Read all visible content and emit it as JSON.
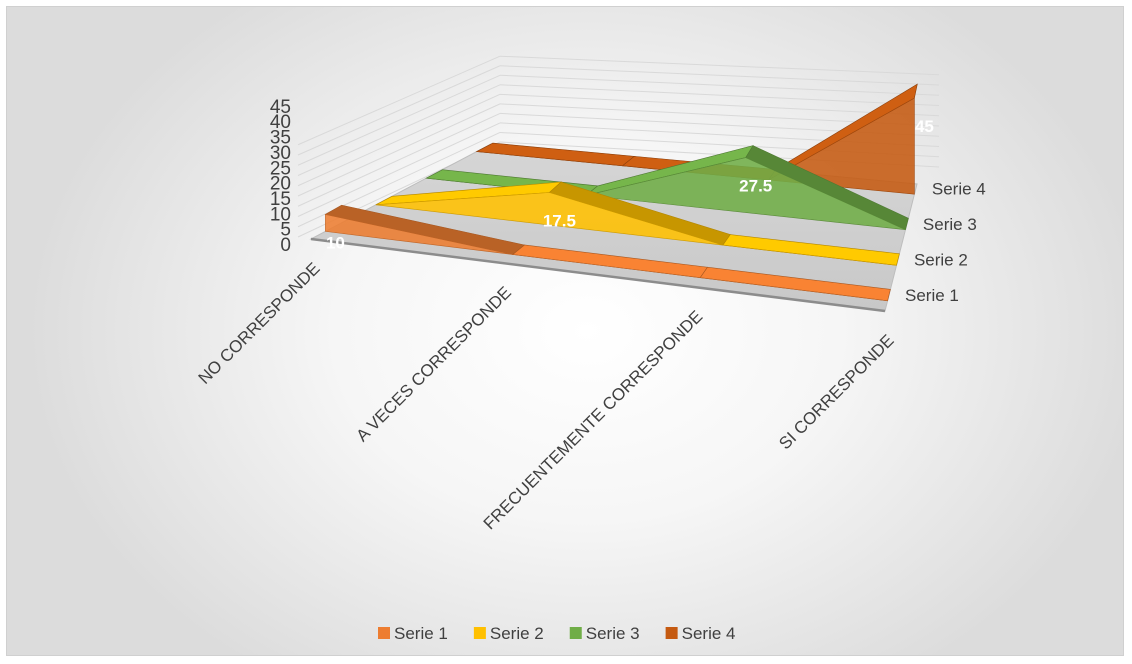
{
  "chart_data": {
    "type": "area",
    "variant": "3d-area",
    "categories": [
      "NO CORRESPONDE",
      "A VECES CORRESPONDE",
      "FRECUENTEMENTE CORRESPONDE",
      "SI CORRESPONDE"
    ],
    "series": [
      {
        "name": "Serie 1",
        "values": [
          10,
          0,
          0,
          0
        ],
        "color": "#ED7D31"
      },
      {
        "name": "Serie 2",
        "values": [
          0,
          17.5,
          0,
          0
        ],
        "color": "#FFC000"
      },
      {
        "name": "Serie 3",
        "values": [
          0,
          0,
          27.5,
          0
        ],
        "color": "#70AD47"
      },
      {
        "name": "Serie 4",
        "values": [
          0,
          0,
          0,
          45
        ],
        "color": "#C55A11"
      }
    ],
    "data_labels": [
      {
        "series": 0,
        "category": 0,
        "text": "10"
      },
      {
        "series": 1,
        "category": 1,
        "text": "17.5"
      },
      {
        "series": 2,
        "category": 2,
        "text": "27.5"
      },
      {
        "series": 3,
        "category": 3,
        "text": "45"
      }
    ],
    "yticks": [
      0,
      5,
      10,
      15,
      20,
      25,
      30,
      35,
      40,
      45
    ],
    "ylim": [
      0,
      45
    ],
    "title": "",
    "xlabel": "",
    "ylabel": "",
    "grid": true,
    "legend": "bottom"
  }
}
